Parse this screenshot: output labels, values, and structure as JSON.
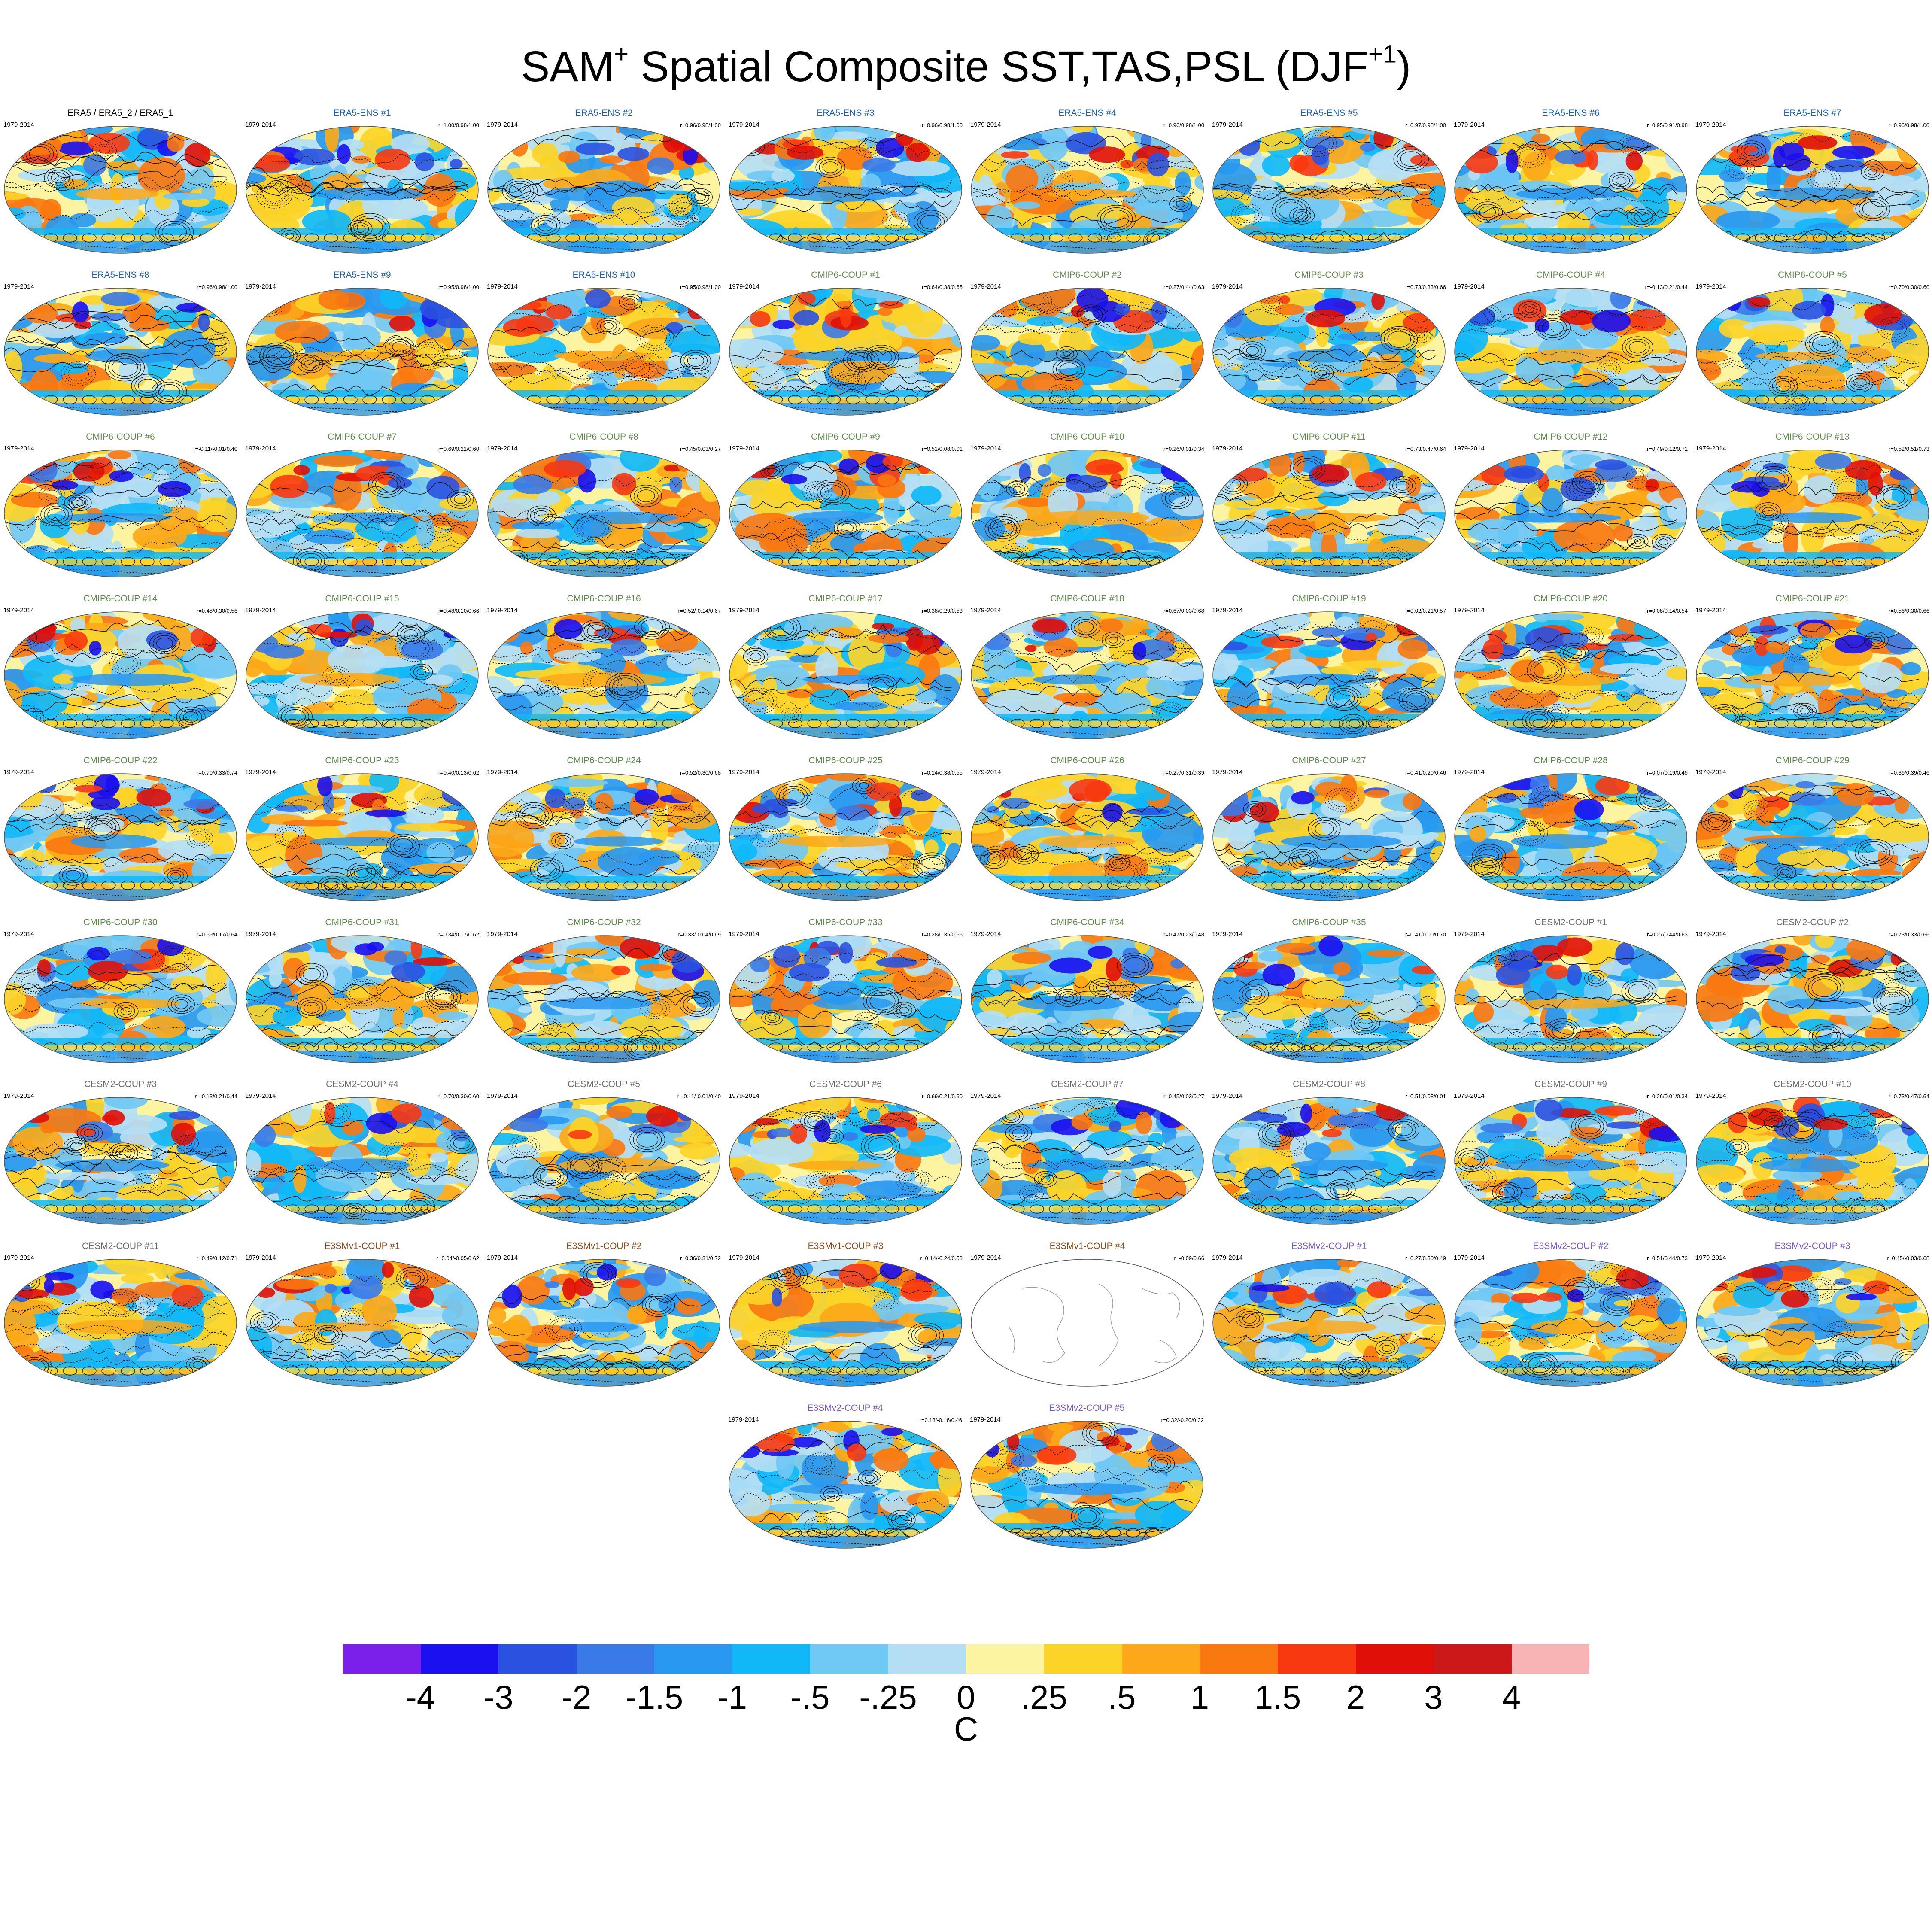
{
  "title": {
    "main": "SAM",
    "sup1": "+",
    "rest": " Spatial Composite SST,TAS,PSL (DJF",
    "sup2": "+1",
    "close": ")"
  },
  "colors": {
    "ERA5": "#000000",
    "ERA5-ENS": "#1f5fa8",
    "CMIP6-COUP": "#5d8a4a",
    "CESM2-COUP": "#6b6b6b",
    "E3SMv1-COUP": "#8a4a1a",
    "E3SMv2-COUP": "#7a58c8"
  },
  "chart_data": {
    "type": "map",
    "variables": [
      "SST",
      "TAS",
      "PSL"
    ],
    "season": "DJF+1",
    "period": "1979-2014",
    "colorbar": {
      "unit": "C",
      "ticks": [
        "-4",
        "-3",
        "-2",
        "-1.5",
        "-1",
        "-.5",
        "-.25",
        "0",
        ".25",
        ".5",
        "1",
        "1.5",
        "2",
        "3",
        "4"
      ],
      "colors": [
        "#7b20e8",
        "#1a10f0",
        "#2a52e0",
        "#3a7ae8",
        "#2898f0",
        "#10b8f8",
        "#70c8f4",
        "#b4def4",
        "#fcf4a0",
        "#fcd428",
        "#fca818",
        "#fa7810",
        "#f83810",
        "#e01008",
        "#cc1818",
        "#f8b4b4"
      ]
    },
    "panels": [
      {
        "label": "ERA5 / ERA5_2 / ERA5_1",
        "group": "ERA5",
        "period": "1979-2014",
        "corr": ""
      },
      {
        "label": "ERA5-ENS   #1",
        "group": "ERA5-ENS",
        "period": "1979-2014",
        "corr": "r=1.00/0.98/1.00"
      },
      {
        "label": "ERA5-ENS   #2",
        "group": "ERA5-ENS",
        "period": "1979-2014",
        "corr": "r=0.96/0.98/1.00"
      },
      {
        "label": "ERA5-ENS   #3",
        "group": "ERA5-ENS",
        "period": "1979-2014",
        "corr": "r=0.96/0.98/1.00"
      },
      {
        "label": "ERA5-ENS   #4",
        "group": "ERA5-ENS",
        "period": "1979-2014",
        "corr": "r=0.96/0.98/1.00"
      },
      {
        "label": "ERA5-ENS   #5",
        "group": "ERA5-ENS",
        "period": "1979-2014",
        "corr": "r=0.97/0.98/1.00"
      },
      {
        "label": "ERA5-ENS   #6",
        "group": "ERA5-ENS",
        "period": "1979-2014",
        "corr": "r=0.95/0.91/0.98"
      },
      {
        "label": "ERA5-ENS   #7",
        "group": "ERA5-ENS",
        "period": "1979-2014",
        "corr": "r=0.96/0.98/1.00"
      },
      {
        "label": "ERA5-ENS   #8",
        "group": "ERA5-ENS",
        "period": "1979-2014",
        "corr": "r=0.96/0.98/1.00"
      },
      {
        "label": "ERA5-ENS   #9",
        "group": "ERA5-ENS",
        "period": "1979-2014",
        "corr": "r=0.95/0.98/1.00"
      },
      {
        "label": "ERA5-ENS   #10",
        "group": "ERA5-ENS",
        "period": "1979-2014",
        "corr": "r=0.95/0.98/1.00"
      },
      {
        "label": "CMIP6-COUP  #1",
        "group": "CMIP6-COUP",
        "period": "1979-2014",
        "corr": "r=0.64/0.38/0.65"
      },
      {
        "label": "CMIP6-COUP  #2",
        "group": "CMIP6-COUP",
        "period": "1979-2014",
        "corr": "r=0.27/0.44/0.63"
      },
      {
        "label": "CMIP6-COUP  #3",
        "group": "CMIP6-COUP",
        "period": "1979-2014",
        "corr": "r=0.73/0.33/0.66"
      },
      {
        "label": "CMIP6-COUP  #4",
        "group": "CMIP6-COUP",
        "period": "1979-2014",
        "corr": "r=-0.13/0.21/0.44"
      },
      {
        "label": "CMIP6-COUP  #5",
        "group": "CMIP6-COUP",
        "period": "1979-2014",
        "corr": "r=0.70/0.30/0.60"
      },
      {
        "label": "CMIP6-COUP  #6",
        "group": "CMIP6-COUP",
        "period": "1979-2014",
        "corr": "r=-0.11/-0.01/0.40"
      },
      {
        "label": "CMIP6-COUP  #7",
        "group": "CMIP6-COUP",
        "period": "1979-2014",
        "corr": "r=0.69/0.21/0.60"
      },
      {
        "label": "CMIP6-COUP  #8",
        "group": "CMIP6-COUP",
        "period": "1979-2014",
        "corr": "r=0.45/0.03/0.27"
      },
      {
        "label": "CMIP6-COUP  #9",
        "group": "CMIP6-COUP",
        "period": "1979-2014",
        "corr": "r=0.51/0.08/0.01"
      },
      {
        "label": "CMIP6-COUP  #10",
        "group": "CMIP6-COUP",
        "period": "1979-2014",
        "corr": "r=0.26/0.01/0.34"
      },
      {
        "label": "CMIP6-COUP  #11",
        "group": "CMIP6-COUP",
        "period": "1979-2014",
        "corr": "r=0.73/0.47/0.64"
      },
      {
        "label": "CMIP6-COUP  #12",
        "group": "CMIP6-COUP",
        "period": "1979-2014",
        "corr": "r=0.49/0.12/0.71"
      },
      {
        "label": "CMIP6-COUP  #13",
        "group": "CMIP6-COUP",
        "period": "1979-2014",
        "corr": "r=0.52/0.51/0.73"
      },
      {
        "label": "CMIP6-COUP  #14",
        "group": "CMIP6-COUP",
        "period": "1979-2014",
        "corr": "r=0.48/0.30/0.56"
      },
      {
        "label": "CMIP6-COUP  #15",
        "group": "CMIP6-COUP",
        "period": "1979-2014",
        "corr": "r=0.48/0.10/0.66"
      },
      {
        "label": "CMIP6-COUP  #16",
        "group": "CMIP6-COUP",
        "period": "1979-2014",
        "corr": "r=0.52/-0.14/0.67"
      },
      {
        "label": "CMIP6-COUP  #17",
        "group": "CMIP6-COUP",
        "period": "1979-2014",
        "corr": "r=0.38/0.29/0.53"
      },
      {
        "label": "CMIP6-COUP  #18",
        "group": "CMIP6-COUP",
        "period": "1979-2014",
        "corr": "r=0.67/0.03/0.68"
      },
      {
        "label": "CMIP6-COUP  #19",
        "group": "CMIP6-COUP",
        "period": "1979-2014",
        "corr": "r=0.02/0.21/0.57"
      },
      {
        "label": "CMIP6-COUP  #20",
        "group": "CMIP6-COUP",
        "period": "1979-2014",
        "corr": "r=0.08/0.14/0.54"
      },
      {
        "label": "CMIP6-COUP  #21",
        "group": "CMIP6-COUP",
        "period": "1979-2014",
        "corr": "r=0.56/0.30/0.66"
      },
      {
        "label": "CMIP6-COUP  #22",
        "group": "CMIP6-COUP",
        "period": "1979-2014",
        "corr": "r=0.70/0.33/0.74"
      },
      {
        "label": "CMIP6-COUP  #23",
        "group": "CMIP6-COUP",
        "period": "1979-2014",
        "corr": "r=0.40/0.13/0.62"
      },
      {
        "label": "CMIP6-COUP  #24",
        "group": "CMIP6-COUP",
        "period": "1979-2014",
        "corr": "r=0.52/0.30/0.68"
      },
      {
        "label": "CMIP6-COUP  #25",
        "group": "CMIP6-COUP",
        "period": "1979-2014",
        "corr": "r=0.14/0.38/0.55"
      },
      {
        "label": "CMIP6-COUP  #26",
        "group": "CMIP6-COUP",
        "period": "1979-2014",
        "corr": "r=0.27/0.31/0.39"
      },
      {
        "label": "CMIP6-COUP  #27",
        "group": "CMIP6-COUP",
        "period": "1979-2014",
        "corr": "r=0.41/0.20/0.46"
      },
      {
        "label": "CMIP6-COUP  #28",
        "group": "CMIP6-COUP",
        "period": "1979-2014",
        "corr": "r=0.07/0.19/0.45"
      },
      {
        "label": "CMIP6-COUP  #29",
        "group": "CMIP6-COUP",
        "period": "1979-2014",
        "corr": "r=0.36/0.39/0.46"
      },
      {
        "label": "CMIP6-COUP  #30",
        "group": "CMIP6-COUP",
        "period": "1979-2014",
        "corr": "r=0.59/0.17/0.64"
      },
      {
        "label": "CMIP6-COUP  #31",
        "group": "CMIP6-COUP",
        "period": "1979-2014",
        "corr": "r=0.34/0.17/0.62"
      },
      {
        "label": "CMIP6-COUP  #32",
        "group": "CMIP6-COUP",
        "period": "1979-2014",
        "corr": "r=0.33/-0.04/0.69"
      },
      {
        "label": "CMIP6-COUP  #33",
        "group": "CMIP6-COUP",
        "period": "1979-2014",
        "corr": "r=0.28/0.35/0.65"
      },
      {
        "label": "CMIP6-COUP  #34",
        "group": "CMIP6-COUP",
        "period": "1979-2014",
        "corr": "r=0.47/0.23/0.48"
      },
      {
        "label": "CMIP6-COUP  #35",
        "group": "CMIP6-COUP",
        "period": "1979-2014",
        "corr": "r=0.41/0.00/0.70"
      },
      {
        "label": "CESM2-COUP   #1",
        "group": "CESM2-COUP",
        "period": "1979-2014",
        "corr": "r=0.27/0.44/0.63"
      },
      {
        "label": "CESM2-COUP   #2",
        "group": "CESM2-COUP",
        "period": "1979-2014",
        "corr": "r=0.73/0.33/0.66"
      },
      {
        "label": "CESM2-COUP   #3",
        "group": "CESM2-COUP",
        "period": "1979-2014",
        "corr": "r=-0.13/0.21/0.44"
      },
      {
        "label": "CESM2-COUP   #4",
        "group": "CESM2-COUP",
        "period": "1979-2014",
        "corr": "r=0.70/0.30/0.60"
      },
      {
        "label": "CESM2-COUP   #5",
        "group": "CESM2-COUP",
        "period": "1979-2014",
        "corr": "r=-0.11/-0.01/0.40"
      },
      {
        "label": "CESM2-COUP   #6",
        "group": "CESM2-COUP",
        "period": "1979-2014",
        "corr": "r=0.69/0.21/0.60"
      },
      {
        "label": "CESM2-COUP   #7",
        "group": "CESM2-COUP",
        "period": "1979-2014",
        "corr": "r=0.45/0.03/0.27"
      },
      {
        "label": "CESM2-COUP   #8",
        "group": "CESM2-COUP",
        "period": "1979-2014",
        "corr": "r=0.51/0.08/0.01"
      },
      {
        "label": "CESM2-COUP   #9",
        "group": "CESM2-COUP",
        "period": "1979-2014",
        "corr": "r=0.26/0.01/0.34"
      },
      {
        "label": "CESM2-COUP   #10",
        "group": "CESM2-COUP",
        "period": "1979-2014",
        "corr": "r=0.73/0.47/0.64"
      },
      {
        "label": "CESM2-COUP   #11",
        "group": "CESM2-COUP",
        "period": "1979-2014",
        "corr": "r=0.49/0.12/0.71"
      },
      {
        "label": "E3SMv1-COUP #1",
        "group": "E3SMv1-COUP",
        "period": "1979-2014",
        "corr": "r=0.04/-0.05/0.62"
      },
      {
        "label": "E3SMv1-COUP #2",
        "group": "E3SMv1-COUP",
        "period": "1979-2014",
        "corr": "r=0.36/0.31/0.72"
      },
      {
        "label": "E3SMv1-COUP #3",
        "group": "E3SMv1-COUP",
        "period": "1979-2014",
        "corr": "r=0.14/-0.24/0.53"
      },
      {
        "label": "E3SMv1-COUP #4",
        "group": "E3SMv1-COUP",
        "period": "1979-2014",
        "corr": "r=-0.09/0.66",
        "blank": true
      },
      {
        "label": "E3SMv2-COUP #1",
        "group": "E3SMv2-COUP",
        "period": "1979-2014",
        "corr": "r=0.27/0.30/0.49"
      },
      {
        "label": "E3SMv2-COUP #2",
        "group": "E3SMv2-COUP",
        "period": "1979-2014",
        "corr": "r=0.51/0.44/0.73"
      },
      {
        "label": "E3SMv2-COUP #3",
        "group": "E3SMv2-COUP",
        "period": "1979-2014",
        "corr": "r=0.45/-0.03/0.68"
      },
      {
        "label": "E3SMv2-COUP #4",
        "group": "E3SMv2-COUP",
        "period": "1979-2014",
        "corr": "r=0.13/-0.18/0.46"
      },
      {
        "label": "E3SMv2-COUP #5",
        "group": "E3SMv2-COUP",
        "period": "1979-2014",
        "corr": "r=0.32/-0.20/0.32"
      }
    ]
  }
}
